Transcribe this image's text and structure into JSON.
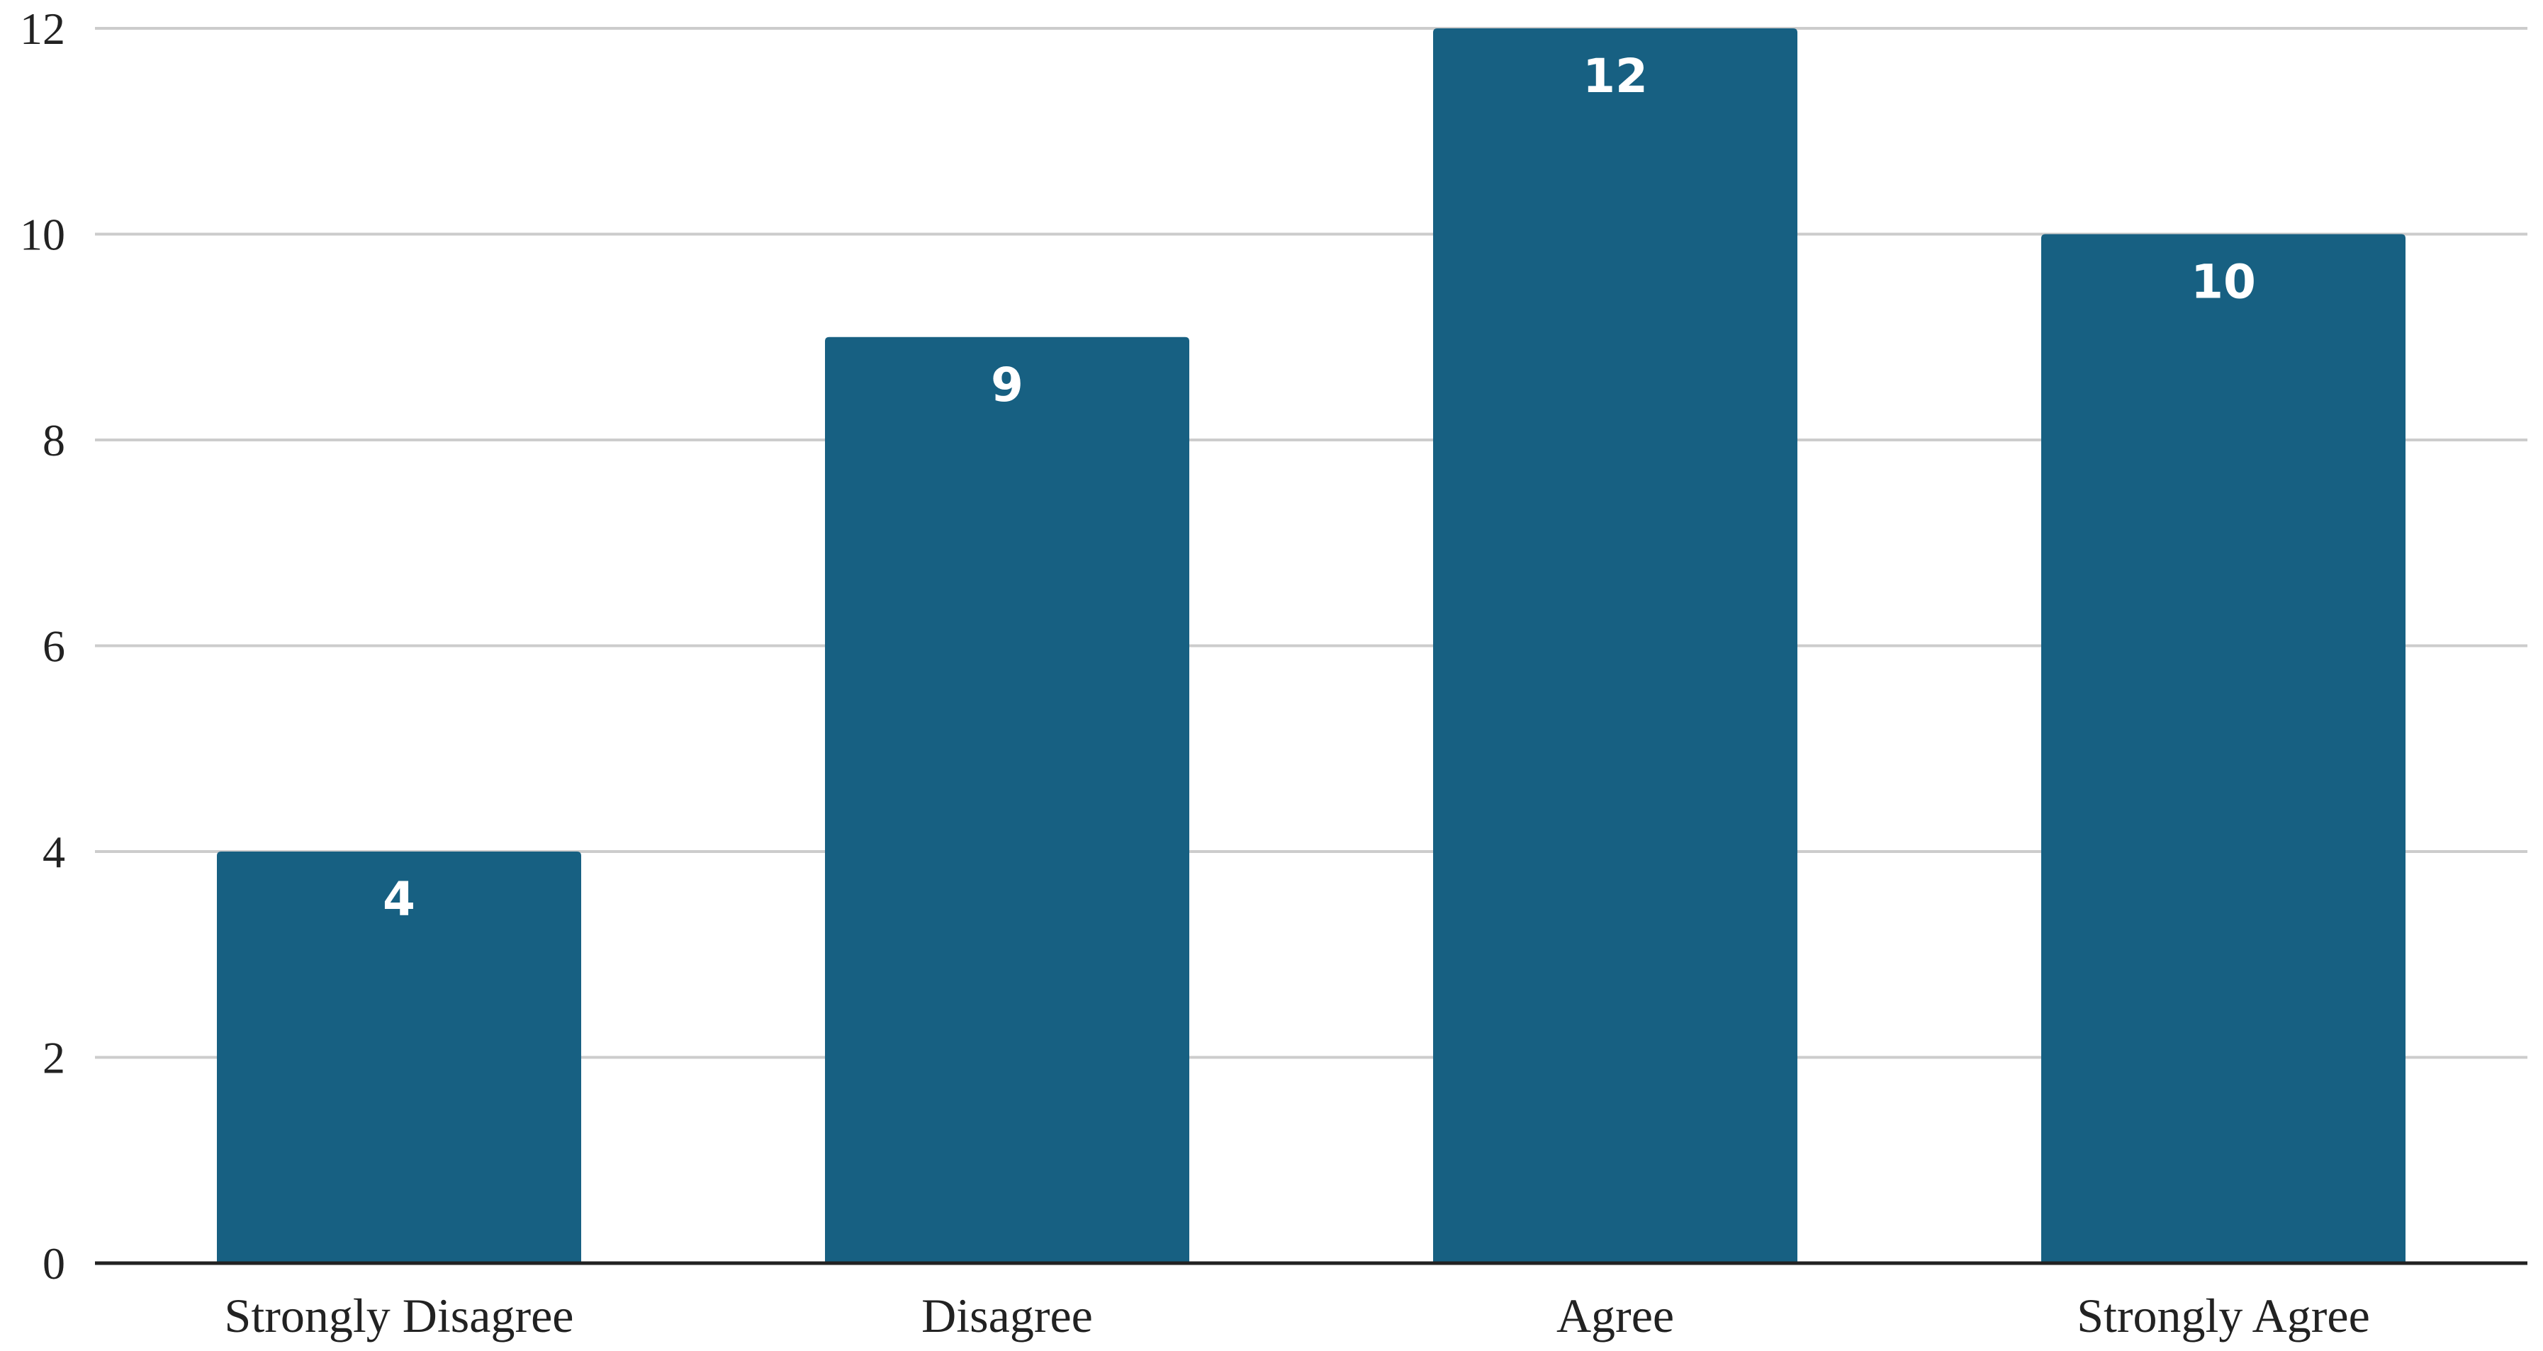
{
  "chart_data": {
    "type": "bar",
    "title": "",
    "xlabel": "",
    "ylabel": "",
    "categories": [
      "Strongly Disagree",
      "Disagree",
      "Agree",
      "Strongly Agree"
    ],
    "values": [
      4,
      9,
      12,
      10
    ],
    "data_labels": [
      "4",
      "9",
      "12",
      "10"
    ],
    "ylim": [
      0,
      12
    ],
    "yticks": [
      0,
      2,
      4,
      6,
      8,
      10,
      12
    ],
    "ytick_labels": [
      "0",
      "2",
      "4",
      "6",
      "8",
      "10",
      "12"
    ],
    "grid": true,
    "legend": "none",
    "colors": {
      "bar": "#176082",
      "grid": "#cccccc",
      "axis": "#222222",
      "label": "#ffffff",
      "text": "#222222"
    }
  }
}
